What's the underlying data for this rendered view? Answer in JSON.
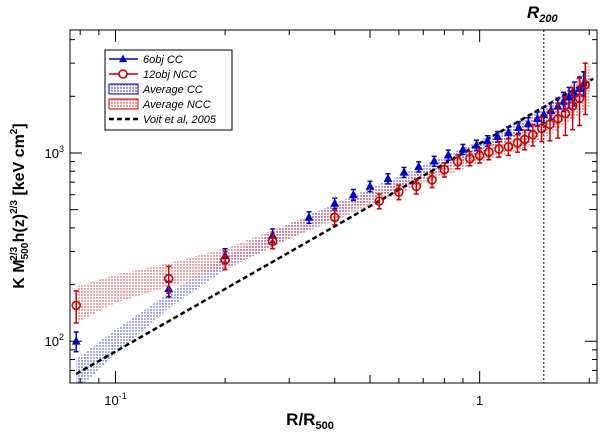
{
  "chart_data": {
    "type": "scatter",
    "x_scale": "log",
    "y_scale": "log",
    "xlim": [
      0.075,
      2.1
    ],
    "ylim": [
      60,
      4500
    ],
    "xlabel": {
      "main": "R/R",
      "sub": "500"
    },
    "ylabel": {
      "pre": "K M",
      "sub1": "500",
      "sup1": "2/3",
      "mid": " h(z)",
      "sup2": "2/3",
      "post": " [keV cm",
      "sup3": "2",
      "end": "]"
    },
    "x_ticks": [
      {
        "value": 0.1,
        "base": "10",
        "exp": "-1"
      },
      {
        "value": 1,
        "base": "1",
        "exp": ""
      }
    ],
    "y_ticks": [
      {
        "value": 100,
        "base": "10",
        "exp": "2"
      },
      {
        "value": 1000,
        "base": "10",
        "exp": "3"
      }
    ],
    "vline": {
      "x": 1.5,
      "label": "R",
      "sub": "200"
    },
    "colors": {
      "cc": "#0000cc",
      "ncc": "#cc0000",
      "fit": "#000000"
    },
    "legend": [
      {
        "label": "6obj CC",
        "kind": "triangle",
        "series": "cc"
      },
      {
        "label": "12obj NCC",
        "kind": "circle",
        "series": "ncc"
      },
      {
        "label": "Average CC",
        "kind": "band",
        "series": "cc"
      },
      {
        "label": "Average NCC",
        "kind": "band",
        "series": "ncc"
      },
      {
        "label": "Voit et al, 2005",
        "kind": "dashed",
        "series": "fit"
      }
    ],
    "series": [
      {
        "name": "6obj CC",
        "marker": "triangle",
        "x": [
          0.078,
          0.14,
          0.2,
          0.27,
          0.34,
          0.4,
          0.45,
          0.5,
          0.56,
          0.62,
          0.68,
          0.75,
          0.82,
          0.9,
          0.98,
          1.05,
          1.12,
          1.2,
          1.28,
          1.36,
          1.44,
          1.5,
          1.57,
          1.64,
          1.7,
          1.76,
          1.82,
          1.88,
          1.93
        ],
        "y": [
          100,
          190,
          285,
          365,
          455,
          540,
          600,
          665,
          730,
          790,
          845,
          905,
          975,
          1045,
          1100,
          1160,
          1220,
          1285,
          1365,
          1430,
          1520,
          1600,
          1680,
          1770,
          1880,
          1980,
          2080,
          2200,
          2350
        ],
        "err": [
          12,
          18,
          25,
          30,
          32,
          35,
          40,
          42,
          45,
          48,
          52,
          55,
          60,
          65,
          70,
          75,
          80,
          90,
          100,
          110,
          130,
          150,
          170,
          190,
          220,
          250,
          300,
          330,
          350
        ]
      },
      {
        "name": "12obj NCC",
        "marker": "circle",
        "x": [
          0.078,
          0.14,
          0.2,
          0.27,
          0.4,
          0.53,
          0.6,
          0.67,
          0.74,
          0.8,
          0.87,
          0.94,
          1.0,
          1.06,
          1.13,
          1.2,
          1.27,
          1.33,
          1.4,
          1.48,
          1.56,
          1.64,
          1.72,
          1.8,
          1.88,
          1.95
        ],
        "y": [
          155,
          215,
          270,
          340,
          455,
          555,
          620,
          665,
          720,
          815,
          900,
          935,
          970,
          1010,
          1050,
          1080,
          1130,
          1180,
          1250,
          1350,
          1420,
          1520,
          1620,
          1780,
          1950,
          2300
        ],
        "err": [
          30,
          35,
          30,
          30,
          40,
          50,
          55,
          60,
          65,
          70,
          75,
          80,
          85,
          90,
          100,
          110,
          120,
          140,
          160,
          200,
          260,
          320,
          380,
          450,
          550,
          700
        ]
      },
      {
        "name": "Average CC",
        "type": "band",
        "x": [
          0.078,
          0.1,
          0.14,
          0.2,
          0.3,
          0.5,
          0.7,
          1.0,
          1.3,
          1.6,
          2.0
        ],
        "lo": [
          55,
          85,
          150,
          240,
          350,
          560,
          730,
          990,
          1270,
          1600,
          2150
        ],
        "hi": [
          80,
          115,
          180,
          280,
          420,
          650,
          860,
          1160,
          1500,
          1930,
          2600
        ]
      },
      {
        "name": "Average NCC",
        "type": "band",
        "x": [
          0.078,
          0.1,
          0.14,
          0.2,
          0.3,
          0.5,
          0.7,
          1.0,
          1.3,
          1.6,
          2.0
        ],
        "lo": [
          125,
          160,
          195,
          245,
          350,
          520,
          690,
          880,
          1050,
          1280,
          1750
        ],
        "hi": [
          195,
          225,
          260,
          310,
          420,
          620,
          780,
          1050,
          1380,
          1800,
          3000
        ]
      },
      {
        "name": "Voit et al, 2005",
        "type": "line",
        "style": "dashed",
        "x": [
          0.078,
          2.05
        ],
        "y": [
          67,
          2480
        ]
      }
    ]
  }
}
